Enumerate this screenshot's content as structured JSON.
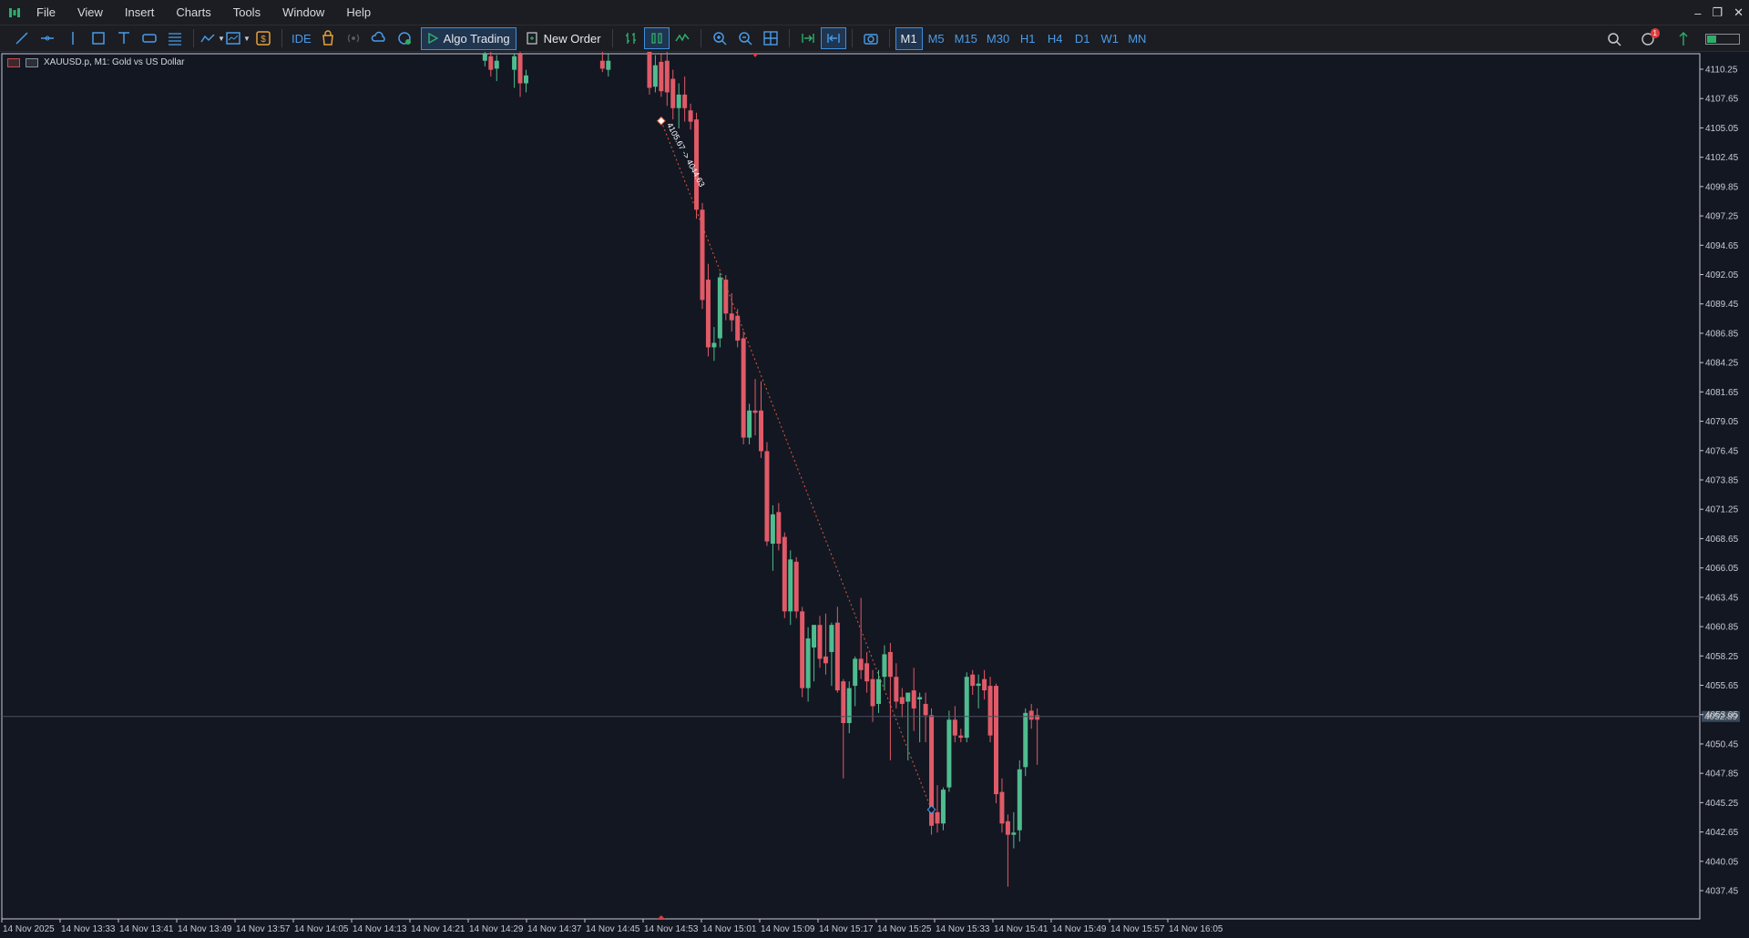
{
  "menu": [
    "File",
    "View",
    "Insert",
    "Charts",
    "Tools",
    "Window",
    "Help"
  ],
  "window_controls": [
    "–",
    "❐",
    "✕"
  ],
  "toolbar": {
    "ide_label": "IDE",
    "algo_label": "Algo Trading",
    "order_label": "New Order",
    "timeframes": [
      "M1",
      "M5",
      "M15",
      "M30",
      "H1",
      "H4",
      "D1",
      "W1",
      "MN"
    ],
    "active_timeframe": "M1",
    "notification_count": "1"
  },
  "chart": {
    "title": "XAUUSD.p, M1:  Gold vs US Dollar",
    "current_price_label": "4052.89",
    "trendline_label": "4105.67 -> 4044.63",
    "colors": {
      "bull": "#4fbc8f",
      "bear": "#e05a67",
      "bg": "#131722",
      "grid": "#2a2e39"
    }
  },
  "chart_data": {
    "type": "candlestick",
    "y_ticks": [
      "4110.25",
      "4107.65",
      "4105.05",
      "4102.45",
      "4099.85",
      "4097.25",
      "4094.65",
      "4092.05",
      "4089.45",
      "4086.85",
      "4084.25",
      "4081.65",
      "4079.05",
      "4076.45",
      "4073.85",
      "4071.25",
      "4068.65",
      "4066.05",
      "4063.45",
      "4060.85",
      "4058.25",
      "4055.65",
      "4053.05",
      "4050.45",
      "4047.85",
      "4045.25",
      "4042.65",
      "4040.05",
      "4037.45"
    ],
    "x_ticks": [
      "14 Nov 2025",
      "14 Nov 13:33",
      "14 Nov 13:41",
      "14 Nov 13:49",
      "14 Nov 13:57",
      "14 Nov 14:05",
      "14 Nov 14:13",
      "14 Nov 14:21",
      "14 Nov 14:29",
      "14 Nov 14:37",
      "14 Nov 14:45",
      "14 Nov 14:53",
      "14 Nov 15:01",
      "14 Nov 15:09",
      "14 Nov 15:17",
      "14 Nov 15:25",
      "14 Nov 15:33",
      "14 Nov 15:41",
      "14 Nov 15:49",
      "14 Nov 15:57",
      "14 Nov 16:05"
    ],
    "candles": [
      {
        "i": 3,
        "o": 4111.0,
        "h": 4112.2,
        "l": 4110.5,
        "c": 4111.6
      },
      {
        "i": 4,
        "o": 4111.4,
        "h": 4111.8,
        "l": 4109.6,
        "c": 4110.2
      },
      {
        "i": 5,
        "o": 4110.3,
        "h": 4111.5,
        "l": 4109.2,
        "c": 4111.0
      },
      {
        "i": 8,
        "o": 4110.2,
        "h": 4111.6,
        "l": 4108.6,
        "c": 4111.4
      },
      {
        "i": 9,
        "o": 4111.6,
        "h": 4112.4,
        "l": 4107.8,
        "c": 4109.0
      },
      {
        "i": 10,
        "o": 4109.0,
        "h": 4110.2,
        "l": 4108.2,
        "c": 4109.7
      },
      {
        "i": 23,
        "o": 4111.0,
        "h": 4112.3,
        "l": 4110.0,
        "c": 4110.3
      },
      {
        "i": 24,
        "o": 4110.2,
        "h": 4111.6,
        "l": 4109.6,
        "c": 4111.0
      },
      {
        "i": 31,
        "o": 4111.8,
        "h": 4112.6,
        "l": 4108.0,
        "c": 4108.6
      },
      {
        "i": 32,
        "o": 4108.7,
        "h": 4111.5,
        "l": 4108.2,
        "c": 4110.6
      },
      {
        "i": 33,
        "o": 4110.9,
        "h": 4111.6,
        "l": 4107.8,
        "c": 4108.3
      },
      {
        "i": 34,
        "o": 4111.0,
        "h": 4112.0,
        "l": 4107.0,
        "c": 4108.2
      },
      {
        "i": 35,
        "o": 4109.4,
        "h": 4110.2,
        "l": 4105.8,
        "c": 4106.8
      },
      {
        "i": 36,
        "o": 4106.8,
        "h": 4109.0,
        "l": 4105.0,
        "c": 4108.0
      },
      {
        "i": 37,
        "o": 4108.0,
        "h": 4109.6,
        "l": 4105.6,
        "c": 4106.8
      },
      {
        "i": 38,
        "o": 4106.6,
        "h": 4107.2,
        "l": 4104.9,
        "c": 4105.6
      },
      {
        "i": 39,
        "o": 4105.8,
        "h": 4106.4,
        "l": 4097.0,
        "c": 4097.8
      },
      {
        "i": 40,
        "o": 4097.8,
        "h": 4098.4,
        "l": 4089.0,
        "c": 4089.8
      },
      {
        "i": 41,
        "o": 4091.6,
        "h": 4093.0,
        "l": 4084.8,
        "c": 4085.6
      },
      {
        "i": 42,
        "o": 4085.6,
        "h": 4087.4,
        "l": 4084.4,
        "c": 4086.0
      },
      {
        "i": 43,
        "o": 4086.4,
        "h": 4092.2,
        "l": 4085.6,
        "c": 4091.8
      },
      {
        "i": 44,
        "o": 4091.6,
        "h": 4092.0,
        "l": 4088.0,
        "c": 4088.6
      },
      {
        "i": 45,
        "o": 4088.6,
        "h": 4090.4,
        "l": 4087.0,
        "c": 4088.0
      },
      {
        "i": 46,
        "o": 4088.4,
        "h": 4089.0,
        "l": 4085.6,
        "c": 4086.2
      },
      {
        "i": 47,
        "o": 4086.4,
        "h": 4087.0,
        "l": 4077.0,
        "c": 4077.6
      },
      {
        "i": 48,
        "o": 4077.6,
        "h": 4080.6,
        "l": 4077.0,
        "c": 4080.0
      },
      {
        "i": 49,
        "o": 4080.0,
        "h": 4082.8,
        "l": 4077.8,
        "c": 4079.8
      },
      {
        "i": 50,
        "o": 4080.0,
        "h": 4082.6,
        "l": 4075.8,
        "c": 4076.4
      },
      {
        "i": 51,
        "o": 4076.4,
        "h": 4077.2,
        "l": 4068.0,
        "c": 4068.4
      },
      {
        "i": 52,
        "o": 4068.2,
        "h": 4071.6,
        "l": 4065.8,
        "c": 4070.8
      },
      {
        "i": 53,
        "o": 4071.0,
        "h": 4071.8,
        "l": 4067.6,
        "c": 4068.2
      },
      {
        "i": 54,
        "o": 4068.8,
        "h": 4069.2,
        "l": 4061.6,
        "c": 4062.2
      },
      {
        "i": 55,
        "o": 4062.2,
        "h": 4067.6,
        "l": 4061.0,
        "c": 4066.8
      },
      {
        "i": 56,
        "o": 4066.6,
        "h": 4067.0,
        "l": 4061.6,
        "c": 4062.2
      },
      {
        "i": 57,
        "o": 4062.2,
        "h": 4062.6,
        "l": 4054.6,
        "c": 4055.4
      },
      {
        "i": 58,
        "o": 4055.4,
        "h": 4060.8,
        "l": 4054.2,
        "c": 4059.8
      },
      {
        "i": 59,
        "o": 4059.0,
        "h": 4061.0,
        "l": 4056.0,
        "c": 4061.0
      },
      {
        "i": 60,
        "o": 4061.0,
        "h": 4061.8,
        "l": 4057.2,
        "c": 4058.0
      },
      {
        "i": 61,
        "o": 4058.2,
        "h": 4062.0,
        "l": 4056.6,
        "c": 4057.6
      },
      {
        "i": 62,
        "o": 4058.6,
        "h": 4061.2,
        "l": 4055.6,
        "c": 4061.0
      },
      {
        "i": 63,
        "o": 4061.2,
        "h": 4062.6,
        "l": 4055.0,
        "c": 4055.2
      },
      {
        "i": 64,
        "o": 4056.0,
        "h": 4056.2,
        "l": 4047.4,
        "c": 4052.3
      },
      {
        "i": 65,
        "o": 4052.3,
        "h": 4056.0,
        "l": 4051.4,
        "c": 4055.4
      },
      {
        "i": 66,
        "o": 4055.6,
        "h": 4058.2,
        "l": 4053.8,
        "c": 4058.0
      },
      {
        "i": 67,
        "o": 4058.0,
        "h": 4063.4,
        "l": 4056.2,
        "c": 4057.0
      },
      {
        "i": 68,
        "o": 4057.6,
        "h": 4058.6,
        "l": 4055.0,
        "c": 4056.0
      },
      {
        "i": 69,
        "o": 4056.2,
        "h": 4057.0,
        "l": 4052.4,
        "c": 4053.8
      },
      {
        "i": 70,
        "o": 4054.0,
        "h": 4057.0,
        "l": 4053.2,
        "c": 4056.2
      },
      {
        "i": 71,
        "o": 4056.4,
        "h": 4059.2,
        "l": 4055.2,
        "c": 4058.4
      },
      {
        "i": 72,
        "o": 4058.6,
        "h": 4059.4,
        "l": 4049.0,
        "c": 4056.4
      },
      {
        "i": 73,
        "o": 4056.4,
        "h": 4057.6,
        "l": 4053.6,
        "c": 4054.2
      },
      {
        "i": 74,
        "o": 4054.6,
        "h": 4055.4,
        "l": 4052.8,
        "c": 4054.0
      },
      {
        "i": 75,
        "o": 4054.2,
        "h": 4055.0,
        "l": 4049.0,
        "c": 4055.0
      },
      {
        "i": 76,
        "o": 4055.2,
        "h": 4057.2,
        "l": 4051.6,
        "c": 4053.6
      },
      {
        "i": 77,
        "o": 4054.4,
        "h": 4055.0,
        "l": 4050.6,
        "c": 4054.6
      },
      {
        "i": 78,
        "o": 4054.0,
        "h": 4055.0,
        "l": 4050.6,
        "c": 4053.0
      },
      {
        "i": 79,
        "o": 4053.0,
        "h": 4053.6,
        "l": 4042.4,
        "c": 4043.2
      },
      {
        "i": 80,
        "o": 4044.4,
        "h": 4046.8,
        "l": 4042.6,
        "c": 4043.4
      },
      {
        "i": 81,
        "o": 4043.4,
        "h": 4046.6,
        "l": 4042.8,
        "c": 4046.4
      },
      {
        "i": 82,
        "o": 4046.6,
        "h": 4053.4,
        "l": 4046.2,
        "c": 4052.6
      },
      {
        "i": 83,
        "o": 4052.6,
        "h": 4053.8,
        "l": 4050.6,
        "c": 4051.2
      },
      {
        "i": 84,
        "o": 4051.2,
        "h": 4051.8,
        "l": 4050.6,
        "c": 4051.0
      },
      {
        "i": 85,
        "o": 4051.0,
        "h": 4056.8,
        "l": 4050.6,
        "c": 4056.4
      },
      {
        "i": 86,
        "o": 4056.6,
        "h": 4057.0,
        "l": 4054.8,
        "c": 4055.6
      },
      {
        "i": 87,
        "o": 4055.6,
        "h": 4056.6,
        "l": 4053.6,
        "c": 4055.8
      },
      {
        "i": 88,
        "o": 4056.2,
        "h": 4057.0,
        "l": 4054.4,
        "c": 4055.2
      },
      {
        "i": 89,
        "o": 4055.6,
        "h": 4056.4,
        "l": 4050.6,
        "c": 4051.2
      },
      {
        "i": 90,
        "o": 4055.6,
        "h": 4055.8,
        "l": 4045.2,
        "c": 4046.0
      },
      {
        "i": 91,
        "o": 4046.2,
        "h": 4047.4,
        "l": 4042.6,
        "c": 4043.4
      },
      {
        "i": 92,
        "o": 4043.6,
        "h": 4044.2,
        "l": 4037.8,
        "c": 4042.4
      },
      {
        "i": 93,
        "o": 4042.4,
        "h": 4044.4,
        "l": 4041.2,
        "c": 4042.6
      },
      {
        "i": 94,
        "o": 4042.8,
        "h": 4049.0,
        "l": 4041.8,
        "c": 4048.2
      },
      {
        "i": 95,
        "o": 4048.4,
        "h": 4053.6,
        "l": 4047.6,
        "c": 4053.2
      },
      {
        "i": 96,
        "o": 4053.4,
        "h": 4054.0,
        "l": 4051.8,
        "c": 4052.6
      },
      {
        "i": 97,
        "o": 4053.0,
        "h": 4053.6,
        "l": 4048.6,
        "c": 4052.6
      }
    ],
    "trendline": {
      "from_i": 33,
      "from_price": 4105.67,
      "to_i": 79,
      "to_price": 4044.63
    }
  }
}
